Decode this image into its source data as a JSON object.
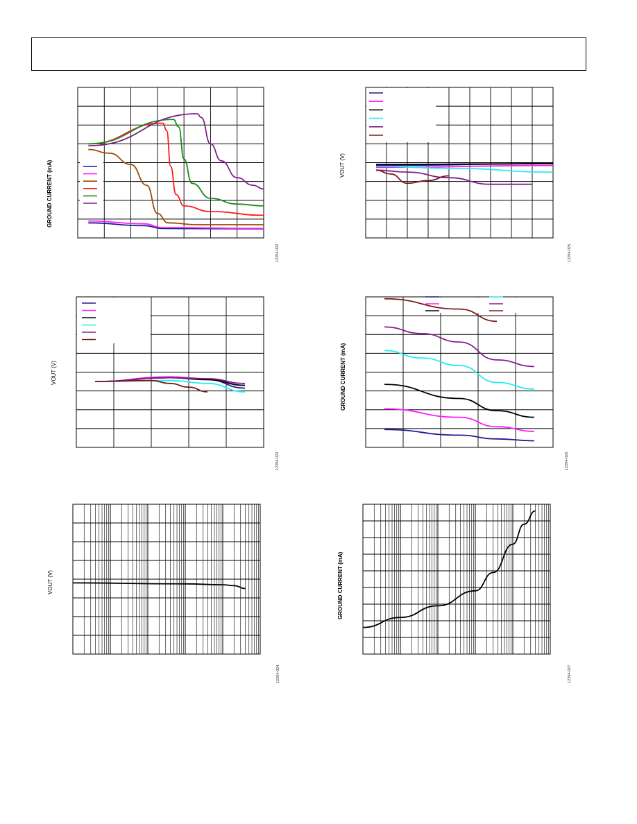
{
  "palette": {
    "blue": "#1c1c8c",
    "magenta": "#ff1aff",
    "brown": "#9c4a00",
    "red": "#ff1a1a",
    "green": "#1a8c1a",
    "purple": "#80208c",
    "black": "#000000",
    "cyan": "#22eeee",
    "maroon": "#7a1a1a"
  },
  "chart_data": [
    {
      "id": "chart1",
      "type": "line",
      "ylabel": "GROUND CURRENT (mA)",
      "figure_id": "12294-022",
      "xlim": [
        0,
        7
      ],
      "ylim": [
        0,
        8
      ],
      "grid": true,
      "legend": "middle-left, unlabeled",
      "series": [
        {
          "color": "blue",
          "points": [
            [
              0.4,
              0.8
            ],
            [
              2.5,
              0.65
            ],
            [
              3.2,
              0.5
            ],
            [
              7,
              0.48
            ]
          ]
        },
        {
          "color": "magenta",
          "points": [
            [
              0.4,
              0.9
            ],
            [
              2.5,
              0.75
            ],
            [
              3.2,
              0.55
            ],
            [
              7,
              0.5
            ]
          ]
        },
        {
          "color": "brown",
          "points": [
            [
              0.4,
              4.7
            ],
            [
              1.2,
              4.5
            ],
            [
              2.0,
              3.9
            ],
            [
              2.6,
              2.8
            ],
            [
              3.0,
              1.3
            ],
            [
              3.4,
              0.8
            ],
            [
              4.5,
              0.7
            ],
            [
              7,
              0.7
            ]
          ]
        },
        {
          "color": "red",
          "points": [
            [
              0.4,
              5.0
            ],
            [
              3.2,
              6.1
            ],
            [
              3.35,
              5.7
            ],
            [
              3.5,
              3.8
            ],
            [
              3.7,
              2.3
            ],
            [
              4.0,
              1.7
            ],
            [
              5.0,
              1.4
            ],
            [
              7,
              1.2
            ]
          ]
        },
        {
          "color": "green",
          "points": [
            [
              0.4,
              5.0
            ],
            [
              3.6,
              6.3
            ],
            [
              3.8,
              5.9
            ],
            [
              4.0,
              4.2
            ],
            [
              4.3,
              2.9
            ],
            [
              5.0,
              2.1
            ],
            [
              6.0,
              1.8
            ],
            [
              7,
              1.7
            ]
          ]
        },
        {
          "color": "purple",
          "points": [
            [
              0.4,
              4.9
            ],
            [
              4.5,
              6.6
            ],
            [
              4.65,
              6.4
            ],
            [
              5.0,
              5.0
            ],
            [
              5.4,
              4.1
            ],
            [
              6.0,
              3.2
            ],
            [
              6.6,
              2.8
            ],
            [
              7,
              2.6
            ]
          ]
        }
      ],
      "legend_colors": [
        "blue",
        "magenta",
        "brown",
        "red",
        "green",
        "purple"
      ]
    },
    {
      "id": "chart2",
      "type": "line",
      "ylabel": "VOUT (V)",
      "figure_id": "12294-025",
      "xlim": [
        0,
        9
      ],
      "ylim": [
        0,
        8
      ],
      "grid": true,
      "legend": "top-left, unlabeled",
      "series": [
        {
          "color": "blue",
          "points": [
            [
              0.5,
              3.85
            ],
            [
              9,
              3.95
            ]
          ]
        },
        {
          "color": "magenta",
          "points": [
            [
              0.5,
              3.75
            ],
            [
              9,
              3.85
            ]
          ]
        },
        {
          "color": "black",
          "points": [
            [
              0.5,
              3.9
            ],
            [
              9,
              3.95
            ]
          ]
        },
        {
          "color": "cyan",
          "points": [
            [
              0.5,
              3.8
            ],
            [
              4,
              3.7
            ],
            [
              9,
              3.5
            ]
          ]
        },
        {
          "color": "purple",
          "points": [
            [
              0.5,
              3.6
            ],
            [
              2,
              3.5
            ],
            [
              4,
              3.2
            ],
            [
              6,
              2.85
            ],
            [
              8,
              2.85
            ]
          ]
        },
        {
          "color": "maroon",
          "points": [
            [
              0.5,
              3.6
            ],
            [
              1.2,
              3.4
            ],
            [
              2,
              2.9
            ],
            [
              3,
              3.05
            ],
            [
              4,
              3.3
            ]
          ]
        }
      ],
      "legend_colors": [
        "blue",
        "magenta",
        "black",
        "cyan",
        "purple",
        "maroon"
      ]
    },
    {
      "id": "chart3",
      "type": "line",
      "ylabel": "VOUT (V)",
      "figure_id": "12294-023",
      "xlim": [
        0,
        5
      ],
      "ylim": [
        0,
        8
      ],
      "grid": true,
      "legend": "top-left, unlabeled",
      "series": [
        {
          "color": "blue",
          "points": [
            [
              0.5,
              3.5
            ],
            [
              2.5,
              3.7
            ],
            [
              3.5,
              3.6
            ],
            [
              4.5,
              3.15
            ]
          ]
        },
        {
          "color": "magenta",
          "points": [
            [
              0.5,
              3.5
            ],
            [
              2.5,
              3.75
            ],
            [
              3.5,
              3.65
            ],
            [
              4.5,
              3.3
            ]
          ]
        },
        {
          "color": "black",
          "points": [
            [
              0.5,
              3.5
            ],
            [
              2.5,
              3.7
            ],
            [
              3.5,
              3.6
            ],
            [
              4.5,
              3.3
            ]
          ]
        },
        {
          "color": "cyan",
          "points": [
            [
              0.5,
              3.5
            ],
            [
              2.5,
              3.55
            ],
            [
              3.5,
              3.4
            ],
            [
              4.5,
              2.95
            ]
          ]
        },
        {
          "color": "purple",
          "points": [
            [
              0.5,
              3.5
            ],
            [
              2.5,
              3.7
            ],
            [
              3.5,
              3.65
            ],
            [
              4.5,
              3.4
            ]
          ]
        },
        {
          "color": "maroon",
          "points": [
            [
              0.5,
              3.5
            ],
            [
              2.0,
              3.55
            ],
            [
              2.5,
              3.4
            ],
            [
              3.0,
              3.2
            ],
            [
              3.5,
              2.95
            ]
          ]
        }
      ],
      "legend_colors": [
        "blue",
        "magenta",
        "black",
        "cyan",
        "purple",
        "maroon"
      ]
    },
    {
      "id": "chart4",
      "type": "line",
      "ylabel": "GROUND CURRENT (mA)",
      "figure_id": "12294-026",
      "xlim": [
        0,
        5
      ],
      "ylim": [
        0,
        8
      ],
      "grid": true,
      "legend": "top, unlabeled",
      "series": [
        {
          "color": "blue",
          "points": [
            [
              0.5,
              0.95
            ],
            [
              2.5,
              0.65
            ],
            [
              3.5,
              0.45
            ],
            [
              4.5,
              0.35
            ]
          ]
        },
        {
          "color": "magenta",
          "points": [
            [
              0.5,
              2.05
            ],
            [
              2.5,
              1.6
            ],
            [
              3.5,
              1.1
            ],
            [
              4.5,
              0.85
            ]
          ]
        },
        {
          "color": "black",
          "points": [
            [
              0.5,
              3.35
            ],
            [
              2.5,
              2.6
            ],
            [
              3.5,
              1.95
            ],
            [
              4.5,
              1.6
            ]
          ]
        },
        {
          "color": "cyan",
          "points": [
            [
              0.5,
              5.15
            ],
            [
              1.5,
              4.75
            ],
            [
              2.5,
              4.35
            ],
            [
              3.5,
              3.45
            ],
            [
              4.5,
              3.1
            ]
          ]
        },
        {
          "color": "purple",
          "points": [
            [
              0.5,
              6.4
            ],
            [
              1.5,
              6.05
            ],
            [
              2.5,
              5.6
            ],
            [
              3.5,
              4.65
            ],
            [
              4.5,
              4.3
            ]
          ]
        },
        {
          "color": "maroon",
          "points": [
            [
              0.5,
              7.9
            ],
            [
              2.5,
              7.35
            ],
            [
              3.5,
              6.7
            ]
          ]
        }
      ],
      "legend_colors": [
        "blue",
        "magenta",
        "black",
        "cyan",
        "purple",
        "maroon"
      ]
    },
    {
      "id": "chart5",
      "type": "line",
      "ylabel": "VOUT (V)",
      "figure_id": "12294-024",
      "xscale": "log",
      "xlim": [
        1,
        100000
      ],
      "ylim": [
        0,
        8
      ],
      "grid": true,
      "series": [
        {
          "color": "black",
          "points": [
            [
              1,
              3.8
            ],
            [
              1000,
              3.75
            ],
            [
              10000,
              3.7
            ],
            [
              20000,
              3.65
            ],
            [
              40000,
              3.5
            ]
          ]
        }
      ]
    },
    {
      "id": "chart6",
      "type": "line",
      "ylabel": "GROUND CURRENT (mA)",
      "figure_id": "12294-027",
      "xscale": "log",
      "xlim": [
        1,
        100000
      ],
      "ylim": [
        0,
        9
      ],
      "grid": true,
      "series": [
        {
          "color": "black",
          "points": [
            [
              1,
              1.6
            ],
            [
              10,
              2.2
            ],
            [
              100,
              2.9
            ],
            [
              1000,
              3.8
            ],
            [
              3000,
              4.9
            ],
            [
              10000,
              6.6
            ],
            [
              20000,
              7.8
            ],
            [
              40000,
              8.6
            ]
          ]
        }
      ]
    }
  ]
}
